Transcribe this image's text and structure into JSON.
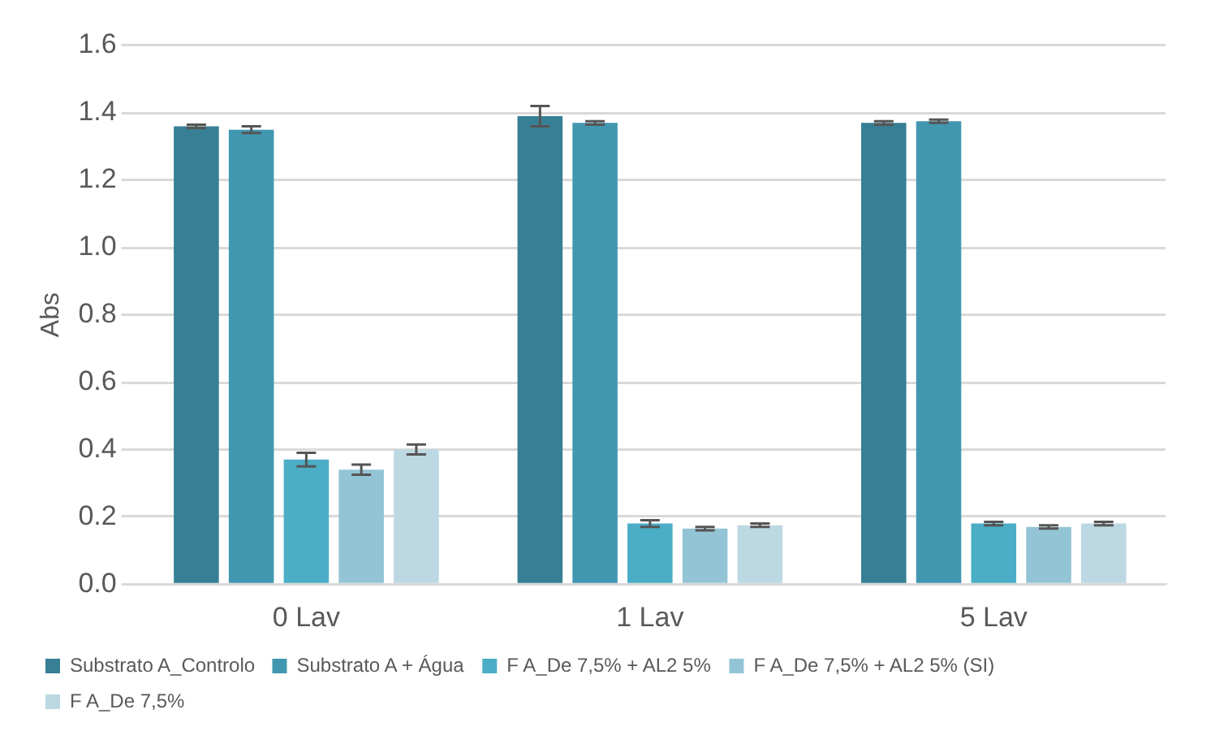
{
  "chart_data": {
    "type": "bar",
    "ylabel": "Abs",
    "categories": [
      "0 Lav",
      "1 Lav",
      "5 Lav"
    ],
    "series": [
      {
        "name": "Substrato A_Controlo",
        "color": "#377f95",
        "values": [
          1.36,
          1.39,
          1.37
        ],
        "errors": [
          0.005,
          0.03,
          0.005
        ]
      },
      {
        "name": "Substrato A + Água",
        "color": "#4297b0",
        "values": [
          1.35,
          1.37,
          1.375
        ],
        "errors": [
          0.01,
          0.005,
          0.005
        ]
      },
      {
        "name": "F A_De 7,5% + AL2 5%",
        "color": "#4badc6",
        "values": [
          0.37,
          0.18,
          0.18
        ],
        "errors": [
          0.02,
          0.01,
          0.005
        ]
      },
      {
        "name": "F A_De 7,5% + AL2 5% (SI)",
        "color": "#93c4d5",
        "values": [
          0.34,
          0.165,
          0.17
        ],
        "errors": [
          0.015,
          0.005,
          0.005
        ]
      },
      {
        "name": "F A_De 7,5%",
        "color": "#bcd8e3",
        "values": [
          0.4,
          0.175,
          0.18
        ],
        "errors": [
          0.015,
          0.005,
          0.005
        ]
      }
    ],
    "ylim": [
      0,
      1.6
    ],
    "yticks": [
      {
        "value": 0,
        "label": "0.0"
      },
      0.2,
      0.4,
      0.6,
      0.8,
      {
        "value": 1,
        "label": "1.0"
      },
      1.2,
      1.4,
      1.6
    ],
    "grid": "y",
    "legend": "bottom"
  }
}
